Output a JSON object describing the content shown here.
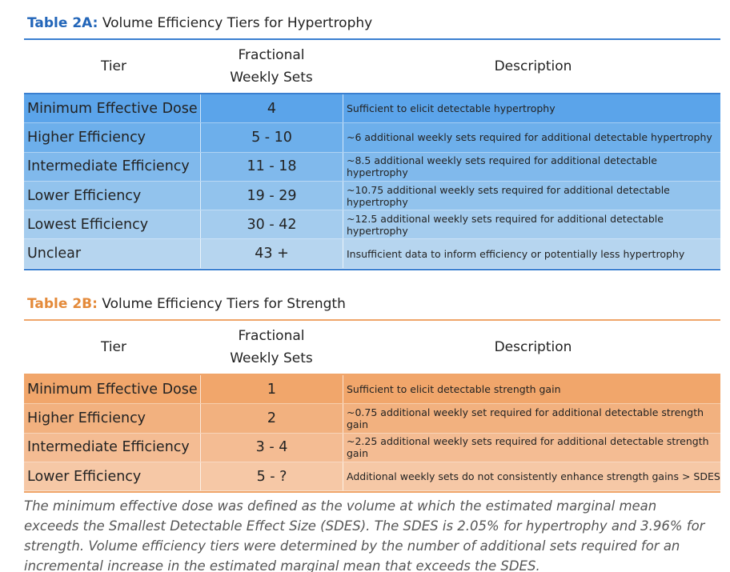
{
  "tables": [
    {
      "label": "Table 2A:",
      "title": "Volume Efficiency Tiers for Hypertrophy",
      "headers": [
        "Tier",
        "Fractional Weekly Sets",
        "Description"
      ],
      "rows": [
        [
          "Minimum Effective Dose",
          "4",
          "Sufficient to elicit detectable hypertrophy"
        ],
        [
          "Higher Efficiency",
          "5 - 10",
          "~6 additional weekly sets required for additional detectable hypertrophy"
        ],
        [
          "Intermediate Efficiency",
          "11 - 18",
          "~8.5 additional weekly sets required for additional detectable hypertrophy"
        ],
        [
          "Lower Efficiency",
          "19 - 29",
          "~10.75 additional weekly sets required for additional detectable hypertrophy"
        ],
        [
          "Lowest Efficiency",
          "30 - 42",
          "~12.5 additional weekly sets required for additional detectable hypertrophy"
        ],
        [
          "Unclear",
          "43 +",
          "Insufficient data to inform efficiency or potentially less hypertrophy"
        ]
      ]
    },
    {
      "label": "Table 2B:",
      "title": "Volume Efficiency Tiers for Strength",
      "headers": [
        "Tier",
        "Fractional Weekly Sets",
        "Description"
      ],
      "rows": [
        [
          "Minimum Effective Dose",
          "1",
          "Sufficient to elicit detectable strength gain"
        ],
        [
          "Higher Efficiency",
          "2",
          "~0.75 additional weekly set required for additional detectable strength gain"
        ],
        [
          "Intermediate Efficiency",
          "3 - 4",
          "~2.25 additional weekly sets required for additional detectable strength gain"
        ],
        [
          "Lower Efficiency",
          "5 - ?",
          "Additional weekly sets do not consistently enhance strength gains > SDES"
        ]
      ]
    }
  ],
  "note": "The minimum effective dose was defined as the volume at which the estimated marginal mean exceeds the Smallest Detectable Effect Size (SDES). The SDES is 2.05% for hypertrophy and 3.96% for strength. Volume efficiency tiers were determined by the number of additional sets required for an incremental increase in the estimated marginal mean that exceeds the SDES."
}
